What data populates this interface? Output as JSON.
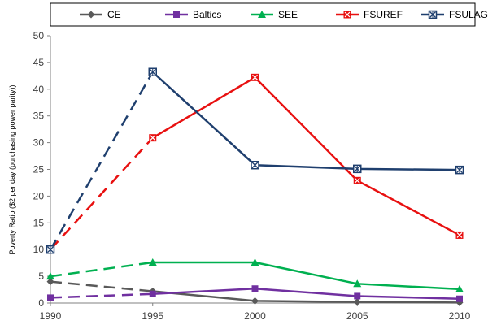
{
  "chart_data": {
    "type": "line",
    "title": "",
    "xlabel": "",
    "ylabel": "Poverty Ratio ($2 per day (purchasing power parity))",
    "x": [
      1990,
      1995,
      2000,
      2005,
      2010
    ],
    "x_ticks": [
      "1990",
      "1995",
      "2000",
      "2005",
      "2010"
    ],
    "xlim": [
      1990,
      2010
    ],
    "ylim": [
      0,
      50
    ],
    "y_ticks": [
      "0",
      "5",
      "10",
      "15",
      "20",
      "25",
      "30",
      "35",
      "40",
      "45",
      "50"
    ],
    "grid": false,
    "legend_position": "top",
    "dashed_segment": "1990-1995",
    "series": [
      {
        "name": "CE",
        "color": "#595959",
        "marker": "diamond",
        "values": [
          4.0,
          2.2,
          0.4,
          0.2,
          0.1
        ]
      },
      {
        "name": "Baltics",
        "color": "#7030a0",
        "marker": "square",
        "values": [
          1.0,
          1.7,
          2.7,
          1.3,
          0.8
        ]
      },
      {
        "name": "SEE",
        "color": "#00b050",
        "marker": "triangle",
        "values": [
          5.0,
          7.6,
          7.6,
          3.6,
          2.6
        ]
      },
      {
        "name": "FSUREF",
        "color": "#e81010",
        "marker": "x-square",
        "values": [
          10.0,
          30.9,
          42.2,
          22.9,
          12.7
        ]
      },
      {
        "name": "FSULAG",
        "color": "#1f3f6e",
        "marker": "star-square",
        "values": [
          10.0,
          43.2,
          25.8,
          25.1,
          24.9
        ]
      }
    ]
  }
}
